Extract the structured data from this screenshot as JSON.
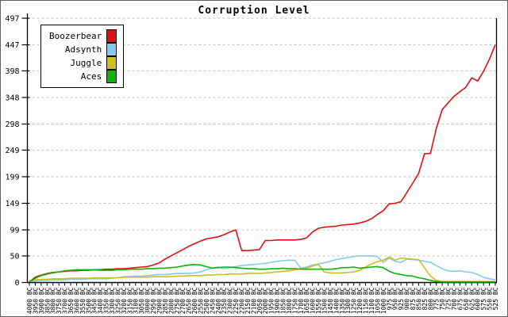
{
  "title": "Corruption Level",
  "chart_data": {
    "type": "line",
    "title": "Corruption Level",
    "xlabel": "",
    "ylabel": "",
    "ylim": [
      0,
      497
    ],
    "y_ticks": [
      0,
      50,
      99,
      149,
      199,
      249,
      298,
      348,
      398,
      447,
      497
    ],
    "grid": true,
    "grid_style": "dashed",
    "legend_position": "top-left",
    "categories": [
      "4000 BC",
      "3950 BC",
      "3900 BC",
      "3850 BC",
      "3800 BC",
      "3750 BC",
      "3700 BC",
      "3650 BC",
      "3600 BC",
      "3550 BC",
      "3500 BC",
      "3450 BC",
      "3400 BC",
      "3350 BC",
      "3300 BC",
      "3250 BC",
      "3200 BC",
      "3150 BC",
      "3100 BC",
      "3050 BC",
      "3000 BC",
      "2950 BC",
      "2900 BC",
      "2850 BC",
      "2800 BC",
      "2750 BC",
      "2700 BC",
      "2650 BC",
      "2600 BC",
      "2550 BC",
      "2500 BC",
      "2450 BC",
      "2400 BC",
      "2350 BC",
      "2300 BC",
      "2250 BC",
      "2200 BC",
      "2150 BC",
      "2100 BC",
      "2050 BC",
      "2000 BC",
      "1950 BC",
      "1900 BC",
      "1850 BC",
      "1800 BC",
      "1750 BC",
      "1700 BC",
      "1650 BC",
      "1600 BC",
      "1550 BC",
      "1500 BC",
      "1450 BC",
      "1400 BC",
      "1350 BC",
      "1300 BC",
      "1250 BC",
      "1200 BC",
      "1150 BC",
      "1100 BC",
      "1050 BC",
      "1000 BC",
      "975 BC",
      "950 BC",
      "925 BC",
      "900 BC",
      "875 BC",
      "850 BC",
      "825 BC",
      "800 BC",
      "775 BC",
      "750 BC",
      "725 BC",
      "700 BC",
      "675 BC",
      "650 BC",
      "625 BC",
      "600 BC",
      "575 BC",
      "550 BC",
      "525 BC"
    ],
    "series": [
      {
        "name": "Boozerbear",
        "color": "#e01010",
        "values": [
          1,
          10,
          14,
          17,
          19,
          20,
          21,
          22,
          22,
          23,
          23,
          24,
          24,
          25,
          25,
          26,
          26,
          27,
          28,
          29,
          30,
          33,
          37,
          44,
          50,
          56,
          62,
          68,
          73,
          78,
          82,
          84,
          86,
          90,
          95,
          99,
          60,
          60,
          61,
          62,
          79,
          79,
          80,
          80,
          80,
          80,
          81,
          84,
          95,
          102,
          104,
          105,
          106,
          108,
          109,
          110,
          112,
          115,
          120,
          128,
          135,
          148,
          149,
          152,
          169,
          187,
          205,
          242,
          243,
          290,
          325,
          338,
          350,
          359,
          367,
          385,
          379,
          397,
          420,
          447
        ]
      },
      {
        "name": "Adsynth",
        "color": "#85c9ed",
        "values": [
          2,
          3,
          4,
          4,
          5,
          5,
          5,
          6,
          6,
          6,
          7,
          7,
          7,
          7,
          8,
          9,
          11,
          11,
          12,
          12,
          13,
          14,
          15,
          15,
          16,
          17,
          17,
          17,
          18,
          20,
          24,
          27,
          29,
          26,
          28,
          30,
          32,
          33,
          34,
          35,
          36,
          38,
          40,
          41,
          42,
          42,
          27,
          29,
          33,
          35,
          37,
          40,
          43,
          45,
          47,
          49,
          50,
          50,
          50,
          49,
          38,
          46,
          40,
          38,
          44,
          43,
          42,
          40,
          38,
          32,
          26,
          22,
          21,
          22,
          20,
          19,
          15,
          10,
          7,
          5
        ]
      },
      {
        "name": "Juggle",
        "color": "#cdc01e",
        "values": [
          4,
          5,
          6,
          6,
          7,
          7,
          7,
          8,
          8,
          8,
          8,
          9,
          9,
          9,
          9,
          9,
          10,
          10,
          10,
          10,
          10,
          11,
          11,
          11,
          11,
          12,
          12,
          13,
          13,
          13,
          14,
          14,
          15,
          15,
          16,
          16,
          16,
          17,
          17,
          17,
          18,
          19,
          20,
          21,
          22,
          24,
          26,
          27,
          31,
          34,
          20,
          18,
          18,
          18,
          19,
          20,
          23,
          29,
          35,
          39,
          42,
          48,
          42,
          46,
          45,
          44,
          43,
          28,
          12,
          4,
          2,
          2,
          2,
          2,
          2,
          2,
          2,
          2,
          2,
          2
        ]
      },
      {
        "name": "Aces",
        "color": "#0ab50a",
        "values": [
          1,
          8,
          13,
          16,
          18,
          20,
          22,
          23,
          24,
          24,
          24,
          24,
          23,
          23,
          23,
          24,
          24,
          25,
          25,
          25,
          26,
          26,
          27,
          27,
          28,
          29,
          31,
          33,
          34,
          33,
          30,
          27,
          28,
          29,
          29,
          28,
          27,
          26,
          26,
          25,
          25,
          26,
          26,
          27,
          26,
          26,
          25,
          25,
          25,
          25,
          25,
          25,
          26,
          28,
          28,
          29,
          27,
          28,
          29,
          30,
          28,
          21,
          17,
          15,
          13,
          12,
          9,
          7,
          4,
          2,
          1,
          1,
          1,
          1,
          1,
          1,
          1,
          1,
          1,
          1
        ]
      }
    ]
  }
}
